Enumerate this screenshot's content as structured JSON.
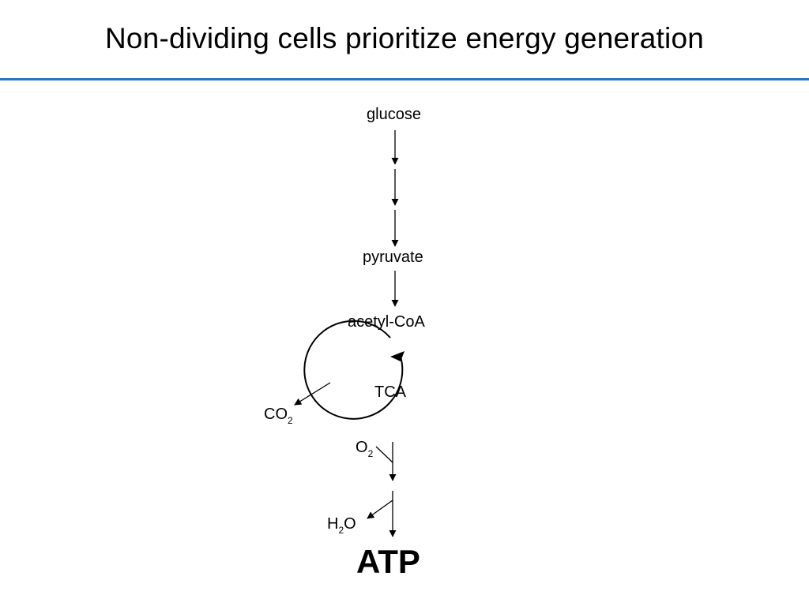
{
  "slide": {
    "title": "Non-dividing cells prioritize energy generation"
  },
  "pathway": {
    "glucose": "glucose",
    "pyruvate": "pyruvate",
    "acetyl_coa": "acetyl-CoA",
    "cycle": "TCA",
    "co2": {
      "main": "CO",
      "sub": "2"
    },
    "o2": {
      "main": "O",
      "sub": "2"
    },
    "h2o": {
      "pre": "H",
      "sub": "2",
      "post": "O"
    },
    "product": "ATP"
  },
  "colors": {
    "rule": "#2f74b8",
    "ink": "#000000"
  }
}
